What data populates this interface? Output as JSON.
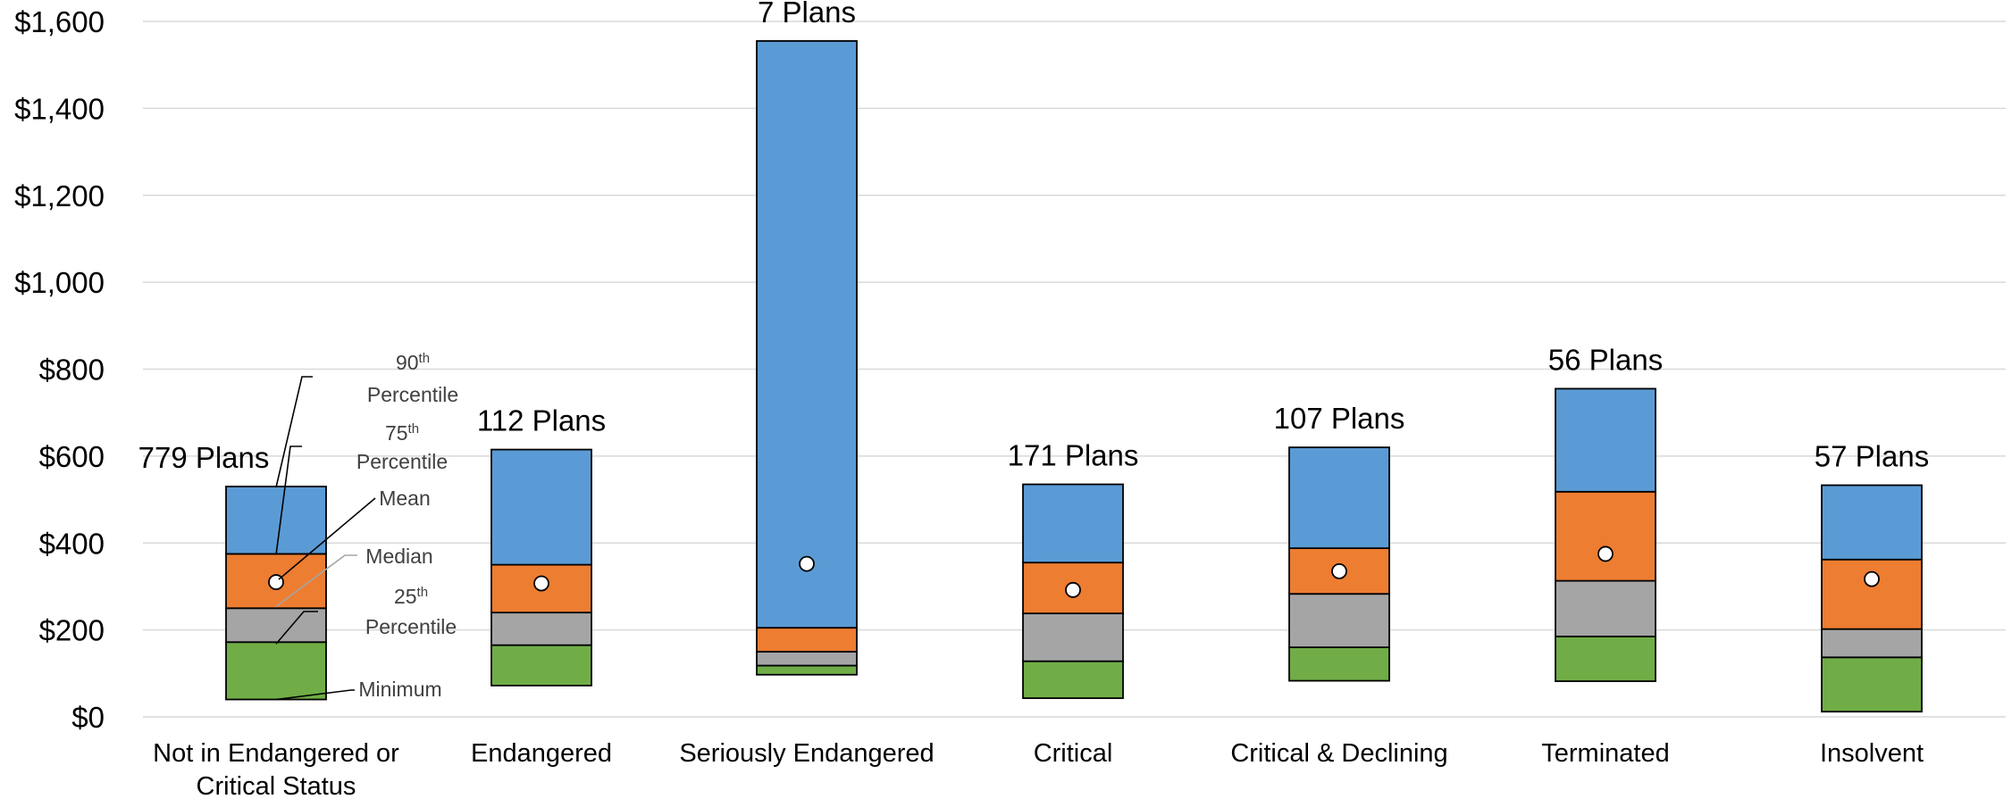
{
  "chart_data": {
    "type": "bar",
    "subtype": "stacked-percentile-range",
    "ylim": [
      0,
      1600
    ],
    "yticks": [
      {
        "value": 0,
        "label": "$0"
      },
      {
        "value": 200,
        "label": "$200"
      },
      {
        "value": 400,
        "label": "$400"
      },
      {
        "value": 600,
        "label": "$600"
      },
      {
        "value": 800,
        "label": "$800"
      },
      {
        "value": 1000,
        "label": "$1,000"
      },
      {
        "value": 1200,
        "label": "$1,200"
      },
      {
        "value": 1400,
        "label": "$1,400"
      },
      {
        "value": 1600,
        "label": "$1,600"
      }
    ],
    "grid": true,
    "colors": {
      "minimum_to_25th": "#70ad47",
      "25th_to_median": "#a5a5a5",
      "median_to_75th": "#ed7d31",
      "75th_to_90th": "#5b9bd5",
      "grid": "#d9d9d9",
      "mean_marker": "#ffffff"
    },
    "categories": [
      {
        "label_lines": [
          "Not in Endangered or",
          "Critical Status"
        ],
        "count_label": "779 Plans",
        "minimum": 40,
        "p25": 172,
        "median": 250,
        "p75": 375,
        "p90": 530,
        "mean": 310
      },
      {
        "label_lines": [
          "Endangered"
        ],
        "count_label": "112 Plans",
        "minimum": 72,
        "p25": 165,
        "median": 240,
        "p75": 350,
        "p90": 615,
        "mean": 307
      },
      {
        "label_lines": [
          "Seriously Endangered"
        ],
        "count_label": "7 Plans",
        "minimum": 97,
        "p25": 118,
        "median": 150,
        "p75": 205,
        "p90": 1555,
        "mean": 352
      },
      {
        "label_lines": [
          "Critical"
        ],
        "count_label": "171 Plans",
        "minimum": 43,
        "p25": 128,
        "median": 238,
        "p75": 355,
        "p90": 535,
        "mean": 292
      },
      {
        "label_lines": [
          "Critical & Declining"
        ],
        "count_label": "107 Plans",
        "minimum": 83,
        "p25": 160,
        "median": 283,
        "p75": 388,
        "p90": 620,
        "mean": 335
      },
      {
        "label_lines": [
          "Terminated"
        ],
        "count_label": "56 Plans",
        "minimum": 82,
        "p25": 185,
        "median": 313,
        "p75": 518,
        "p90": 755,
        "mean": 375
      },
      {
        "label_lines": [
          "Insolvent"
        ],
        "count_label": "57 Plans",
        "minimum": 12,
        "p25": 137,
        "median": 202,
        "p75": 362,
        "p90": 533,
        "mean": 317
      }
    ],
    "legend": {
      "placement": "inside-left, annotating first bar",
      "items": [
        {
          "key": "p90",
          "line1": "90",
          "sup": "th",
          "line2": "Percentile"
        },
        {
          "key": "p75",
          "line1": "75",
          "sup": "th",
          "line2": "Percentile"
        },
        {
          "key": "mean",
          "line1": "Mean"
        },
        {
          "key": "median",
          "line1": "Median"
        },
        {
          "key": "p25",
          "line1": "25",
          "sup": "th",
          "line2": "Percentile"
        },
        {
          "key": "minimum",
          "line1": "Minimum"
        }
      ]
    }
  }
}
